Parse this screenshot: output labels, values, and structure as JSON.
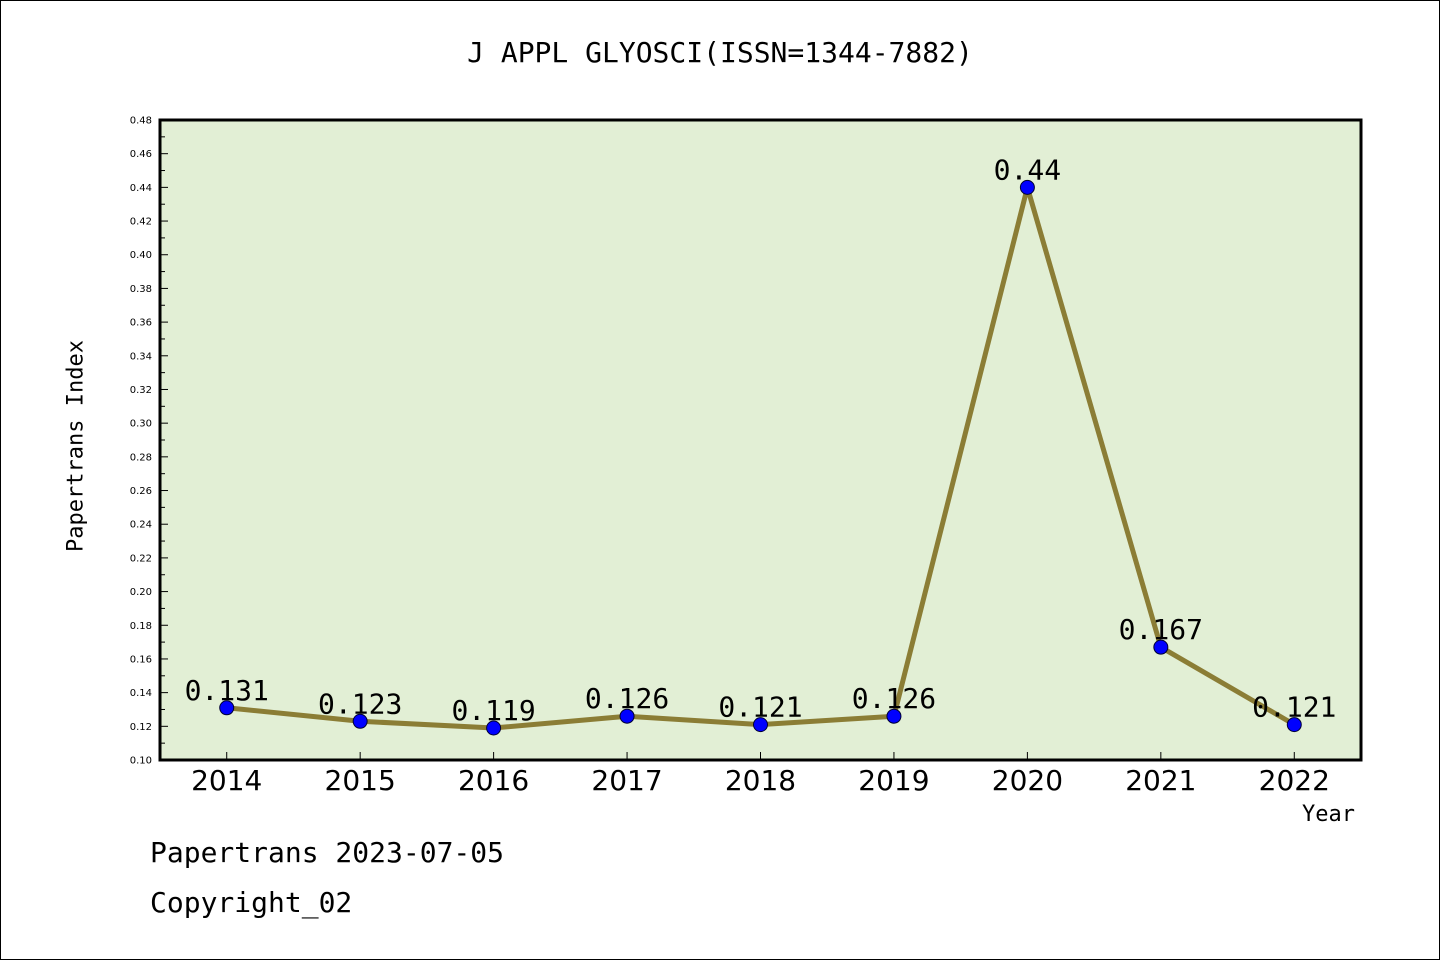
{
  "chart_data": {
    "type": "line",
    "title": "J APPL GLYOSCI(ISSN=1344-7882)",
    "xlabel": "Year",
    "ylabel": "Papertrans Index",
    "categories": [
      "2014",
      "2015",
      "2016",
      "2017",
      "2018",
      "2019",
      "2020",
      "2021",
      "2022"
    ],
    "series": [
      {
        "values": [
          0.131,
          0.123,
          0.119,
          0.126,
          0.121,
          0.126,
          0.44,
          0.167,
          0.121
        ]
      }
    ],
    "data_labels": [
      "0.131",
      "0.123",
      "0.119",
      "0.126",
      "0.121",
      "0.126",
      "0.44",
      "0.167",
      "0.121"
    ],
    "ylim": [
      0.1,
      0.48
    ],
    "yticks": [
      "0.10",
      "0.12",
      "0.14",
      "0.16",
      "0.18",
      "0.20",
      "0.22",
      "0.24",
      "0.26",
      "0.28",
      "0.30",
      "0.32",
      "0.34",
      "0.36",
      "0.38",
      "0.40",
      "0.42",
      "0.44",
      "0.46",
      "0.48"
    ],
    "grid": false,
    "colors": {
      "plot_bg": "#e2efd5",
      "line": "#8b7d35",
      "marker": "#0000ff"
    }
  },
  "footer": {
    "line1": "Papertrans 2023-07-05",
    "line2": "Copyright_02"
  }
}
